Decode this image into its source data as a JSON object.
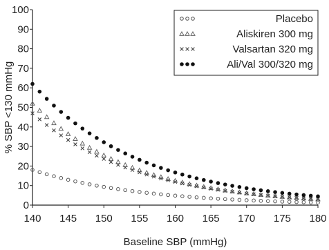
{
  "chart_data": {
    "type": "scatter",
    "xlabel": "Baseline SBP (mmHg)",
    "ylabel": "% SBP <130 mmHg",
    "xlim": [
      140,
      180
    ],
    "ylim": [
      0,
      100
    ],
    "xticks": [
      140,
      145,
      150,
      155,
      160,
      165,
      170,
      175,
      180
    ],
    "yticks": [
      0,
      10,
      20,
      30,
      40,
      50,
      60,
      70,
      80,
      90,
      100
    ],
    "grid": false,
    "legend_position": "top-right",
    "x_step": 1,
    "series": [
      {
        "name": "Placebo",
        "marker": "open-circle",
        "color": "#555555",
        "y_start": 18,
        "y_end": 1.3
      },
      {
        "name": "Aliskiren 300 mg",
        "marker": "triangle",
        "color": "#666666",
        "y_start": 52,
        "y_end": 3
      },
      {
        "name": "Valsartan 320 mg",
        "marker": "x",
        "color": "#444444",
        "y_start": 47,
        "y_end": 3
      },
      {
        "name": "Ali/Val 300/320 mg",
        "marker": "filled-circle",
        "color": "#111111",
        "y_start": 62,
        "y_end": 4.5
      }
    ]
  }
}
